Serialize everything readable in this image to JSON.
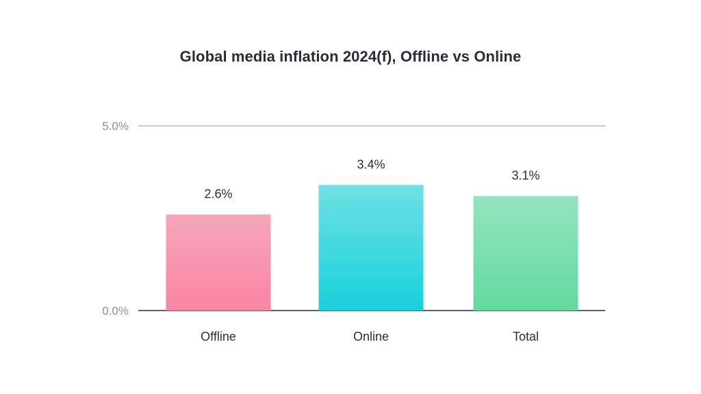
{
  "chart_data": {
    "type": "bar",
    "title": "Global media inflation 2024(f), Offline vs Online",
    "xlabel": "",
    "ylabel": "",
    "categories": [
      "Offline",
      "Online",
      "Total"
    ],
    "values": [
      2.6,
      3.4,
      3.1
    ],
    "value_labels": [
      "2.6%",
      "3.4%",
      "3.1%"
    ],
    "ylim": [
      0,
      5.0
    ],
    "y_ticks": [
      {
        "value": 0.0,
        "label": "0.0%"
      },
      {
        "value": 5.0,
        "label": "5.0%"
      }
    ],
    "grid": true,
    "legend": "none",
    "colors": {
      "Offline": {
        "top": "#f6a6ba",
        "bottom": "#f985a4"
      },
      "Online": {
        "top": "#6fe0e4",
        "bottom": "#18d1db"
      },
      "Total": {
        "top": "#94e4bf",
        "bottom": "#62da9f"
      },
      "axis": "#2a2a3c",
      "gridline": "#8e8e95"
    }
  }
}
